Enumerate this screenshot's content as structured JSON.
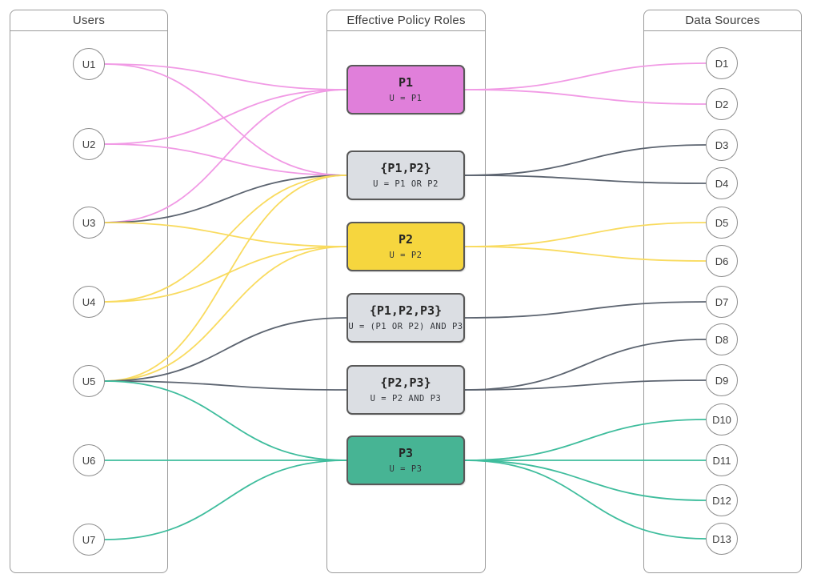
{
  "panels": {
    "users": {
      "title": "Users"
    },
    "roles": {
      "title": "Effective Policy Roles"
    },
    "sources": {
      "title": "Data Sources"
    }
  },
  "users": [
    {
      "id": "U1",
      "label": "U1"
    },
    {
      "id": "U2",
      "label": "U2"
    },
    {
      "id": "U3",
      "label": "U3"
    },
    {
      "id": "U4",
      "label": "U4"
    },
    {
      "id": "U5",
      "label": "U5"
    },
    {
      "id": "U6",
      "label": "U6"
    },
    {
      "id": "U7",
      "label": "U7"
    }
  ],
  "roles": [
    {
      "id": "P1",
      "title": "P1",
      "formula": "U = P1",
      "color_key": "p1"
    },
    {
      "id": "P1P2",
      "title": "{P1,P2}",
      "formula": "U = P1 OR P2",
      "color_key": "multi"
    },
    {
      "id": "P2",
      "title": "P2",
      "formula": "U = P2",
      "color_key": "p2"
    },
    {
      "id": "P1P2P3",
      "title": "{P1,P2,P3}",
      "formula": "U = (P1 OR P2) AND P3",
      "color_key": "multi"
    },
    {
      "id": "P2P3",
      "title": "{P2,P3}",
      "formula": "U = P2 AND P3",
      "color_key": "multi"
    },
    {
      "id": "P3",
      "title": "P3",
      "formula": "U = P3",
      "color_key": "p3"
    }
  ],
  "sources": [
    {
      "id": "D1",
      "label": "D1"
    },
    {
      "id": "D2",
      "label": "D2"
    },
    {
      "id": "D3",
      "label": "D3"
    },
    {
      "id": "D4",
      "label": "D4"
    },
    {
      "id": "D5",
      "label": "D5"
    },
    {
      "id": "D6",
      "label": "D6"
    },
    {
      "id": "D7",
      "label": "D7"
    },
    {
      "id": "D8",
      "label": "D8"
    },
    {
      "id": "D9",
      "label": "D9"
    },
    {
      "id": "D10",
      "label": "D10"
    },
    {
      "id": "D11",
      "label": "D11"
    },
    {
      "id": "D12",
      "label": "D12"
    },
    {
      "id": "D13",
      "label": "D13"
    }
  ],
  "colors": {
    "p1_fill": "#E07FDA",
    "p1_line": "#F19AE5",
    "p2_fill": "#F6D63E",
    "p2_line": "#F9DB5F",
    "p3_fill": "#47B494",
    "p3_line": "#3FBD9D",
    "multi_fill": "#DBDEE3",
    "multi_line": "#5C6470",
    "node_border": "#8C8C8C",
    "box_border": "#595959",
    "panel_border": "#9B9B9B"
  },
  "edges_left": [
    {
      "from": "U1",
      "to": "P1",
      "color": "p1_line"
    },
    {
      "from": "U2",
      "to": "P1",
      "color": "p1_line"
    },
    {
      "from": "U3",
      "to": "P1",
      "color": "p1_line"
    },
    {
      "from": "U1",
      "to": "P1P2",
      "color": "p1_line"
    },
    {
      "from": "U2",
      "to": "P1P2",
      "color": "p1_line"
    },
    {
      "from": "U3",
      "to": "P1P2",
      "color": "multi_line"
    },
    {
      "from": "U3",
      "to": "P2",
      "color": "p2_line"
    },
    {
      "from": "U4",
      "to": "P2",
      "color": "p2_line"
    },
    {
      "from": "U5",
      "to": "P2",
      "color": "p2_line"
    },
    {
      "from": "U4",
      "to": "P1P2",
      "color": "p2_line"
    },
    {
      "from": "U5",
      "to": "P1P2",
      "color": "p2_line"
    },
    {
      "from": "U5",
      "to": "P1P2P3",
      "color": "multi_line"
    },
    {
      "from": "U5",
      "to": "P2P3",
      "color": "multi_line"
    },
    {
      "from": "U5",
      "to": "P3",
      "color": "p3_line"
    },
    {
      "from": "U6",
      "to": "P3",
      "color": "p3_line"
    },
    {
      "from": "U7",
      "to": "P3",
      "color": "p3_line"
    }
  ],
  "edges_right": [
    {
      "from": "P1",
      "to": "D1",
      "color": "p1_line"
    },
    {
      "from": "P1",
      "to": "D2",
      "color": "p1_line"
    },
    {
      "from": "P1P2",
      "to": "D3",
      "color": "multi_line"
    },
    {
      "from": "P1P2",
      "to": "D4",
      "color": "multi_line"
    },
    {
      "from": "P2",
      "to": "D5",
      "color": "p2_line"
    },
    {
      "from": "P2",
      "to": "D6",
      "color": "p2_line"
    },
    {
      "from": "P1P2P3",
      "to": "D7",
      "color": "multi_line"
    },
    {
      "from": "P2P3",
      "to": "D8",
      "color": "multi_line"
    },
    {
      "from": "P2P3",
      "to": "D9",
      "color": "multi_line"
    },
    {
      "from": "P3",
      "to": "D10",
      "color": "p3_line"
    },
    {
      "from": "P3",
      "to": "D11",
      "color": "p3_line"
    },
    {
      "from": "P3",
      "to": "D12",
      "color": "p3_line"
    },
    {
      "from": "P3",
      "to": "D13",
      "color": "p3_line"
    }
  ]
}
